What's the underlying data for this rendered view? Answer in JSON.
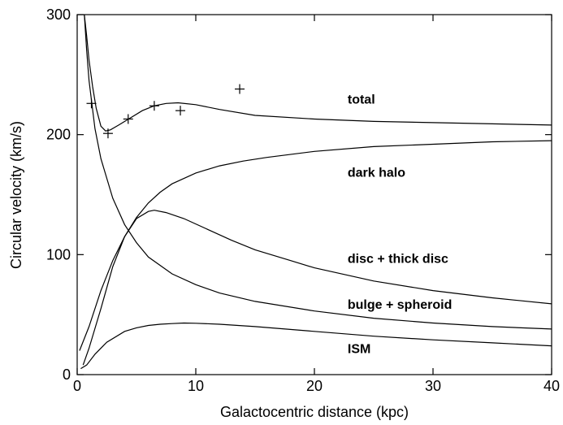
{
  "chart_data": {
    "type": "line",
    "title": "",
    "xlabel": "Galactocentric distance (kpc)",
    "ylabel": "Circular velocity (km/s)",
    "xlim": [
      0,
      40
    ],
    "ylim": [
      0,
      300
    ],
    "xticks": [
      0,
      10,
      20,
      30,
      40
    ],
    "yticks": [
      0,
      100,
      200,
      300
    ],
    "grid": false,
    "series": [
      {
        "name": "total",
        "label_at": [
          22.8,
          226
        ],
        "points": [
          [
            0.6,
            300
          ],
          [
            0.8,
            282
          ],
          [
            1.0,
            262
          ],
          [
            1.3,
            240
          ],
          [
            1.6,
            222
          ],
          [
            2.0,
            207
          ],
          [
            2.4,
            203
          ],
          [
            2.8,
            204
          ],
          [
            3.5,
            208
          ],
          [
            4.5,
            214
          ],
          [
            5.5,
            220
          ],
          [
            6.5,
            224
          ],
          [
            7.5,
            226
          ],
          [
            8.5,
            226.5
          ],
          [
            10,
            225
          ],
          [
            12,
            221
          ],
          [
            15,
            216
          ],
          [
            20,
            213
          ],
          [
            25,
            211
          ],
          [
            30,
            210
          ],
          [
            35,
            209
          ],
          [
            40,
            208
          ]
        ]
      },
      {
        "name": "dark halo",
        "label_at": [
          22.8,
          165
        ],
        "points": [
          [
            0.2,
            20
          ],
          [
            1,
            40
          ],
          [
            2,
            70
          ],
          [
            3,
            95
          ],
          [
            4,
            115
          ],
          [
            5,
            131
          ],
          [
            6,
            143
          ],
          [
            7,
            152
          ],
          [
            8,
            159
          ],
          [
            10,
            168
          ],
          [
            12,
            174
          ],
          [
            14,
            178
          ],
          [
            16,
            181
          ],
          [
            20,
            186
          ],
          [
            25,
            190
          ],
          [
            30,
            192
          ],
          [
            35,
            194
          ],
          [
            40,
            195
          ]
        ]
      },
      {
        "name": "disc + thick disc",
        "label_at": [
          22.8,
          93
        ],
        "points": [
          [
            0.5,
            8
          ],
          [
            1,
            22
          ],
          [
            2,
            55
          ],
          [
            3,
            90
          ],
          [
            4,
            115
          ],
          [
            5,
            130
          ],
          [
            6,
            136
          ],
          [
            6.5,
            137
          ],
          [
            7.5,
            135
          ],
          [
            9,
            130
          ],
          [
            11,
            121
          ],
          [
            13,
            112
          ],
          [
            15,
            104
          ],
          [
            18,
            95
          ],
          [
            20,
            89
          ],
          [
            25,
            78
          ],
          [
            30,
            70
          ],
          [
            35,
            64
          ],
          [
            40,
            59
          ]
        ]
      },
      {
        "name": "bulge + spheroid",
        "label_at": [
          22.8,
          55
        ],
        "points": [
          [
            0.6,
            300
          ],
          [
            0.8,
            270
          ],
          [
            1.0,
            245
          ],
          [
            1.5,
            205
          ],
          [
            2,
            180
          ],
          [
            3,
            147
          ],
          [
            4,
            125
          ],
          [
            5,
            110
          ],
          [
            6,
            98
          ],
          [
            8,
            84
          ],
          [
            10,
            75
          ],
          [
            12,
            68
          ],
          [
            15,
            61
          ],
          [
            20,
            53
          ],
          [
            25,
            47
          ],
          [
            30,
            43
          ],
          [
            35,
            40
          ],
          [
            40,
            38
          ]
        ]
      },
      {
        "name": "ISM",
        "label_at": [
          22.8,
          18
        ],
        "points": [
          [
            0.3,
            5
          ],
          [
            0.8,
            8
          ],
          [
            1.5,
            17
          ],
          [
            2.5,
            27
          ],
          [
            4,
            36
          ],
          [
            5,
            39
          ],
          [
            6,
            41
          ],
          [
            7,
            42
          ],
          [
            8,
            42.5
          ],
          [
            9,
            43
          ],
          [
            10,
            42.8
          ],
          [
            12,
            42
          ],
          [
            15,
            40
          ],
          [
            20,
            36
          ],
          [
            25,
            32
          ],
          [
            30,
            29
          ],
          [
            35,
            26.5
          ],
          [
            40,
            24
          ]
        ]
      }
    ],
    "observations": {
      "points": [
        [
          1.2,
          226
        ],
        [
          2.6,
          201
        ],
        [
          4.3,
          213
        ],
        [
          6.5,
          224
        ],
        [
          8.7,
          220
        ],
        [
          13.7,
          238
        ]
      ]
    }
  }
}
